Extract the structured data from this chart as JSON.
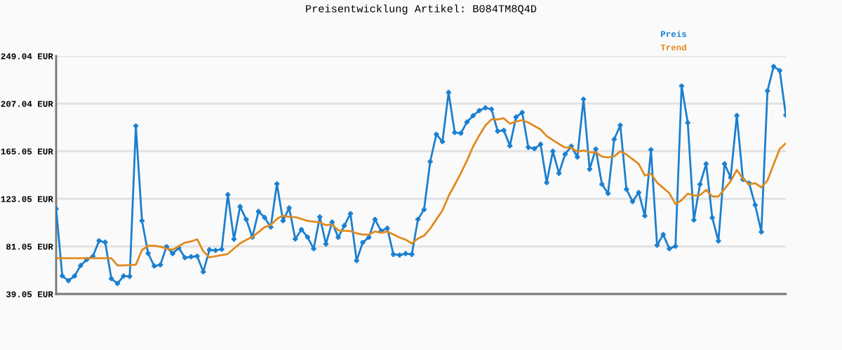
{
  "chart_data": {
    "type": "line",
    "title": "Preisentwicklung Artikel: B084TM8Q4D",
    "categories": [
      null,
      null,
      null,
      null,
      null,
      null,
      null,
      null,
      null,
      null,
      null,
      null,
      null,
      null,
      null,
      null,
      null,
      null,
      null,
      null,
      null,
      null,
      null,
      null,
      null,
      null,
      null,
      null,
      null,
      null,
      null,
      null,
      null,
      null,
      null,
      null,
      null,
      null,
      null,
      null,
      null,
      null,
      null,
      null,
      null,
      null,
      null,
      null,
      null,
      null,
      null,
      null,
      null,
      null,
      null,
      null,
      null,
      null,
      null,
      null,
      null,
      null,
      null,
      null,
      null,
      null,
      null,
      null,
      null,
      null,
      null,
      null,
      null,
      null,
      null,
      null,
      null,
      null,
      null,
      null,
      null,
      null,
      null,
      null,
      null,
      null,
      null,
      null,
      null,
      null,
      null,
      null,
      null,
      null,
      null,
      null,
      null,
      null,
      null,
      null,
      null,
      null,
      null,
      null,
      null,
      null,
      null,
      null,
      null,
      null,
      null,
      null,
      null,
      null,
      null,
      null,
      null,
      null,
      null,
      null
    ],
    "series": [
      {
        "name": "Preis",
        "color": "#1a7fcf",
        "marker": "cross",
        "values": [
          114.2,
          55.1,
          50.8,
          54.9,
          64.2,
          69.5,
          72.4,
          86.0,
          84.7,
          52.6,
          48.3,
          54.9,
          54.5,
          187.3,
          103.7,
          74.9,
          63.7,
          64.8,
          80.8,
          74.7,
          79.8,
          71.1,
          71.9,
          72.4,
          58.6,
          78.1,
          77.5,
          78.5,
          126.7,
          87.4,
          116.2,
          104.9,
          89.2,
          111.9,
          106.5,
          98.1,
          136.2,
          103.7,
          115.0,
          87.6,
          95.9,
          89.2,
          79.0,
          107.0,
          83.1,
          102.5,
          89.0,
          99.4,
          110.0,
          68.5,
          84.5,
          89.0,
          104.9,
          94.6,
          97.1,
          74.0,
          73.4,
          74.7,
          74.0,
          104.9,
          113.6,
          155.8,
          179.9,
          173.5,
          216.9,
          181.5,
          180.9,
          190.8,
          196.4,
          200.9,
          203.3,
          202.1,
          182.7,
          183.5,
          169.8,
          195.1,
          199.2,
          168.5,
          167.3,
          171.2,
          137.4,
          165.0,
          145.5,
          162.4,
          169.4,
          159.9,
          210.9,
          149.2,
          166.9,
          136.0,
          127.8,
          175.5,
          187.9,
          131.5,
          120.6,
          128.6,
          108.0,
          166.3,
          82.1,
          91.5,
          79.0,
          81.2,
          222.5,
          190.2,
          104.3,
          135.8,
          153.9,
          106.3,
          85.8,
          153.9,
          141.8,
          196.5,
          140.1,
          136.8,
          117.5,
          93.8,
          218.2,
          239.8,
          236.1,
          196.7
        ]
      },
      {
        "name": "Trend",
        "color": "#e08a1e",
        "values": [
          70.6,
          70.6,
          70.6,
          70.6,
          70.6,
          70.6,
          70.6,
          70.6,
          70.6,
          70.6,
          64.3,
          64.3,
          64.6,
          64.9,
          77.8,
          81.6,
          81.6,
          80.8,
          79.0,
          78.1,
          81.2,
          84.4,
          85.4,
          87.4,
          76.7,
          71.4,
          72.4,
          73.4,
          74.4,
          79.2,
          83.7,
          86.8,
          89.4,
          93.6,
          98.1,
          99.8,
          105.3,
          108.2,
          107.1,
          106.9,
          105.3,
          103.5,
          102.9,
          102.3,
          99.8,
          100.4,
          95.2,
          94.8,
          94.6,
          92.6,
          91.5,
          91.5,
          94.2,
          93.0,
          94.2,
          91.5,
          88.9,
          87.0,
          83.7,
          88.0,
          90.5,
          96.7,
          104.9,
          112.7,
          125.5,
          135.4,
          145.7,
          156.8,
          169.2,
          179.0,
          187.7,
          193.1,
          193.1,
          194.1,
          189.3,
          191.2,
          192.4,
          190.4,
          187.3,
          184.2,
          178.4,
          174.9,
          171.4,
          168.3,
          168.1,
          164.6,
          165.8,
          164.2,
          164.0,
          160.3,
          159.5,
          160.5,
          165.0,
          162.1,
          158.0,
          153.9,
          143.6,
          145.3,
          137.3,
          132.7,
          128.0,
          118.3,
          121.8,
          127.6,
          125.9,
          126.3,
          130.9,
          125.1,
          125.1,
          131.7,
          138.6,
          148.5,
          140.8,
          135.8,
          136.8,
          133.1,
          139.3,
          153.3,
          167.1,
          172.0
        ]
      }
    ],
    "ylim": [
      39.05,
      249.04
    ],
    "yticks": [
      {
        "value": 39.05,
        "label": "39.05 EUR"
      },
      {
        "value": 81.05,
        "label": "81.05 EUR"
      },
      {
        "value": 123.05,
        "label": "123.05 EUR"
      },
      {
        "value": 165.05,
        "label": "165.05 EUR"
      },
      {
        "value": 207.04,
        "label": "207.04 EUR"
      },
      {
        "value": 249.04,
        "label": "249.04 EUR"
      }
    ],
    "grid": "y",
    "legend": "top right",
    "tick_labels": "y"
  }
}
